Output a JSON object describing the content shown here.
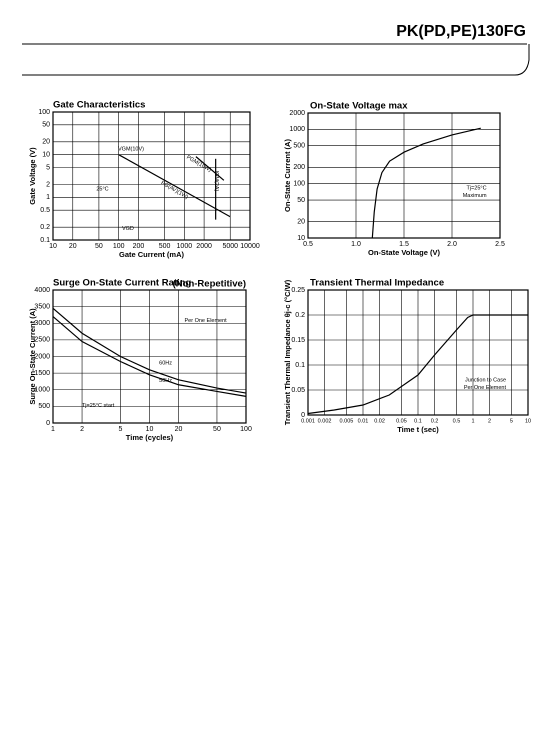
{
  "header": {
    "title": "PK(PD,PE)130FG"
  },
  "chart_data": [
    {
      "type": "line",
      "title": "Gate Characteristics",
      "xlabel": "Gate Current (mA)",
      "ylabel": "Gate Voltage (V)",
      "log_x": true,
      "log_y": true,
      "grid": true,
      "xlim": [
        10,
        10000
      ],
      "xticks": [
        10,
        20,
        50,
        100,
        200,
        500,
        1000,
        2000,
        5000,
        10000
      ],
      "ylim": [
        0.1,
        100
      ],
      "yticks": [
        0.1,
        0.2,
        0.5,
        1,
        2,
        5,
        10,
        20,
        50,
        100
      ],
      "series": [
        {
          "color": "#000000",
          "x": [
            100,
            5000
          ],
          "values": [
            10,
            0.35
          ]
        },
        {
          "color": "#000000",
          "x": [
            1500,
            4000
          ],
          "values": [
            9,
            2.5
          ]
        },
        {
          "color": "#000000",
          "x": [
            3000,
            3000
          ],
          "values": [
            0.3,
            8
          ]
        }
      ],
      "annotations": [
        "VGM(10V)",
        "PGM(10W)",
        "PG(AV)(1W)",
        "IGM(2A)",
        "25°C",
        "VGD"
      ]
    },
    {
      "type": "line",
      "title": "On-State Voltage max",
      "xlabel": "On-State Voltage (V)",
      "ylabel": "On-State Current (A)",
      "log_x": false,
      "log_y": true,
      "grid": true,
      "xlim": [
        0.5,
        2.5
      ],
      "xticks": [
        0.5,
        {
          "value": 1,
          "label": "1.0"
        },
        1.5,
        {
          "value": 2,
          "label": "2.0"
        },
        2.5
      ],
      "ylim": [
        10,
        2000
      ],
      "yticks": [
        10,
        20,
        50,
        100,
        200,
        500,
        1000,
        2000
      ],
      "series": [
        {
          "color": "#000000",
          "x": [
            1.17,
            1.19,
            1.22,
            1.27,
            1.35,
            1.5,
            1.7,
            2.0,
            2.3
          ],
          "values": [
            10,
            30,
            80,
            160,
            260,
            380,
            540,
            790,
            1050
          ]
        }
      ],
      "annotations": [
        "Tj=25°C",
        "Maximum"
      ]
    },
    {
      "type": "line",
      "title": "Surge On-State Current Rating",
      "subtitle": "(Non-Repetitive)",
      "xlabel": "Time (cycles)",
      "ylabel": "Surge On-State Current (A)",
      "log_x": true,
      "log_y": false,
      "grid": true,
      "xlim": [
        1,
        100
      ],
      "xticks": [
        1,
        2,
        5,
        10,
        20,
        50,
        100
      ],
      "ylim": [
        0,
        4000
      ],
      "yticks": [
        0,
        500,
        1000,
        1500,
        2000,
        2500,
        3000,
        3500,
        4000
      ],
      "series": [
        {
          "name": "60Hz",
          "color": "#000000",
          "x": [
            1,
            2,
            5,
            10,
            20,
            50,
            100
          ],
          "values": [
            3450,
            2700,
            2000,
            1600,
            1300,
            1050,
            900
          ]
        },
        {
          "name": "50Hz",
          "color": "#000000",
          "x": [
            1,
            2,
            5,
            10,
            20,
            50,
            100
          ],
          "values": [
            3200,
            2450,
            1850,
            1450,
            1150,
            950,
            800
          ]
        }
      ],
      "annotations": [
        "Per One Element",
        "Tj=25°C start"
      ]
    },
    {
      "type": "line",
      "title": "Transient Thermal Impedance",
      "xlabel": "Time t (sec)",
      "ylabel": "Transient Thermal Impedance θj-c (°C/W)",
      "log_x": true,
      "log_y": false,
      "grid": true,
      "xlim": [
        0.001,
        10
      ],
      "xticks": [
        0.001,
        0.002,
        0.005,
        0.01,
        0.02,
        0.05,
        0.1,
        0.2,
        0.5,
        1,
        2,
        5,
        10
      ],
      "ylim": [
        0,
        0.25
      ],
      "yticks": [
        0,
        0.05,
        0.1,
        0.15,
        0.2,
        0.25
      ],
      "series": [
        {
          "color": "#000000",
          "x": [
            0.001,
            0.003,
            0.01,
            0.03,
            0.1,
            0.2,
            0.5,
            0.8,
            1,
            10
          ],
          "values": [
            0.003,
            0.01,
            0.02,
            0.04,
            0.08,
            0.12,
            0.17,
            0.195,
            0.2,
            0.2
          ]
        }
      ],
      "annotations": [
        "Junction to Case",
        "Per One Element"
      ]
    }
  ]
}
